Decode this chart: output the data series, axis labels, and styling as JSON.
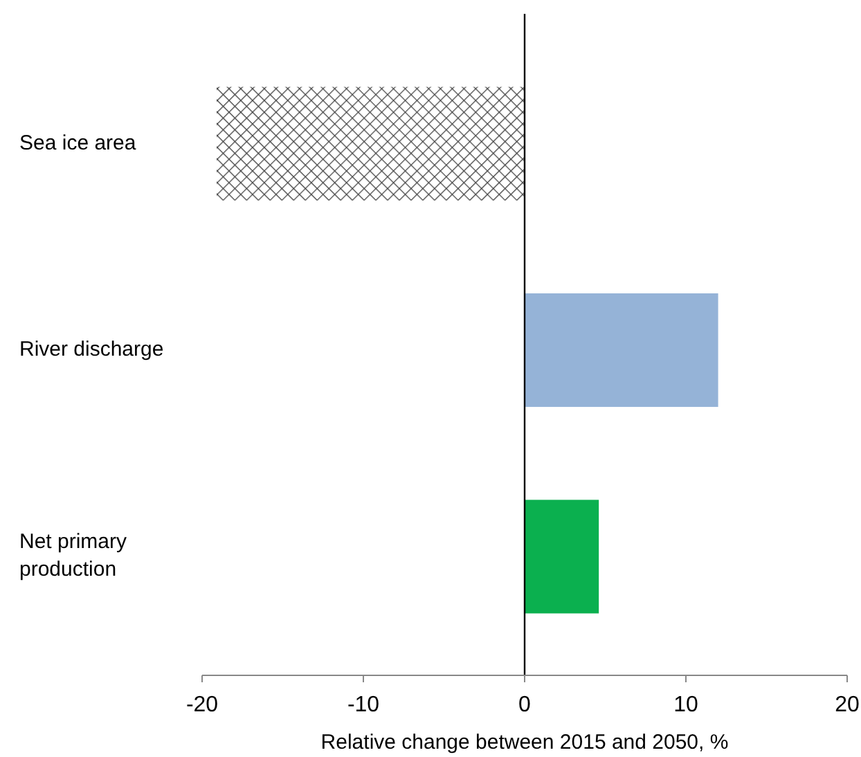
{
  "chart_data": {
    "type": "bar",
    "orientation": "horizontal",
    "xlabel": "Relative change between 2015 and 2050, %",
    "categories": [
      "Sea ice area",
      "River discharge",
      "Net primary production"
    ],
    "values": [
      -19.1,
      12.0,
      4.6
    ],
    "colors": [
      "#444444",
      "#95b3d7",
      "#0bb04f"
    ],
    "xlim": [
      -20,
      20
    ],
    "xticks": [
      -20,
      -10,
      0,
      10,
      20
    ]
  }
}
